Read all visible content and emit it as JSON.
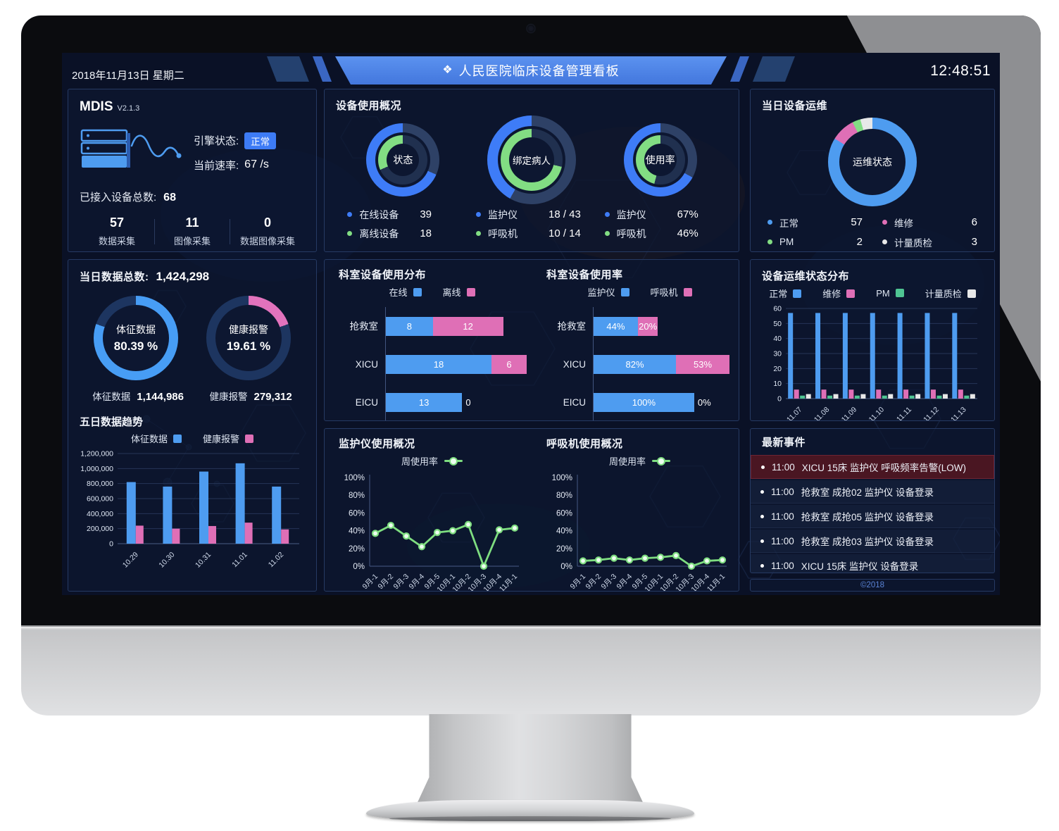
{
  "header": {
    "date": "2018年11月13日 星期二",
    "title": "人民医院临床设备管理看板",
    "title_icon": "❖",
    "time": "12:48:51"
  },
  "mdis": {
    "title": "MDIS",
    "version": "V2.1.3",
    "engine_label": "引擎状态:",
    "engine_status": "正常",
    "rate_label": "当前速率:",
    "rate_value": "67 /s",
    "connected_label": "已接入设备总数:",
    "connected_value": "68",
    "stats": [
      {
        "value": "57",
        "label": "数据采集"
      },
      {
        "value": "11",
        "label": "图像采集"
      },
      {
        "value": "0",
        "label": "数据图像采集"
      }
    ]
  },
  "panels": {
    "device_usage_title": "设备使用概况",
    "today_ops_title": "当日设备运维",
    "today_total_label": "当日数据总数:",
    "today_total_value": "1,424,298",
    "vitals_label": "体征数据",
    "vitals_value": "1,144,986",
    "alarms_label": "健康报警",
    "alarms_value": "279,312",
    "five_day_title": "五日数据趋势",
    "dept_dist_title": "科室设备使用分布",
    "dept_usage_title": "科室设备使用率",
    "ops_dist_title": "设备运维状态分布",
    "monitor_title": "监护仪使用概况",
    "ventilator_title": "呼吸机使用概况",
    "events_title": "最新事件",
    "copyright": "©2018"
  },
  "events": [
    {
      "time": "11:00",
      "text": "XICU 15床 监护仪 呼吸频率告警(LOW)",
      "alert": true
    },
    {
      "time": "11:00",
      "text": "抢救室 成抢02 监护仪 设备登录",
      "alert": false
    },
    {
      "time": "11:00",
      "text": "抢救室 成抢05 监护仪 设备登录",
      "alert": false
    },
    {
      "time": "11:00",
      "text": "抢救室 成抢03 监护仪 设备登录",
      "alert": false
    },
    {
      "time": "11:00",
      "text": "XICU 15床 监护仪 设备登录",
      "alert": false
    }
  ],
  "colors": {
    "donut_blue": "#3e7cf7",
    "bar_blue": "#4e9cf0",
    "green": "#82dd83",
    "teal": "#4fc492",
    "pink": "#df6fb6",
    "white_gray": "#e8e8e8",
    "outer_track": "#2e4166",
    "inner_track": "#20304f",
    "navy_track": "#1d3560",
    "banner_blue": "#4c86e9",
    "badge_blue": "#3d7bf5",
    "alert_bg": "#4a1622"
  },
  "chart_data": [
    {
      "id": "status_donut",
      "type": "pie",
      "variant": "double-ring",
      "direction": "counterclockwise",
      "center_label": "状态",
      "size": 104,
      "rings": [
        {
          "name": "在线设备",
          "value": 39,
          "total": 57,
          "pct": 68.4,
          "color": "#3e7cf7",
          "track": "#2e4166"
        },
        {
          "name": "离线设备",
          "value": 18,
          "total": 57,
          "pct": 31.6,
          "color": "#82dd83",
          "track": "#20304f"
        }
      ],
      "legend": [
        {
          "label": "在线设备",
          "value": "39",
          "color": "#3e7cf7"
        },
        {
          "label": "离线设备",
          "value": "18",
          "color": "#82dd83"
        }
      ]
    },
    {
      "id": "bind_donut",
      "type": "pie",
      "variant": "double-ring",
      "direction": "counterclockwise",
      "center_label": "绑定病人",
      "size": 126,
      "rings": [
        {
          "name": "监护仪",
          "value": 18,
          "total": 43,
          "pct": 41.9,
          "color": "#3e7cf7",
          "track": "#2e4166"
        },
        {
          "name": "呼吸机",
          "value": 10,
          "total": 14,
          "pct": 71.4,
          "color": "#82dd83",
          "track": "#20304f"
        }
      ],
      "legend": [
        {
          "label": "监护仪",
          "value": "18 / 43",
          "color": "#3e7cf7"
        },
        {
          "label": "呼吸机",
          "value": "10 / 14",
          "color": "#82dd83"
        }
      ]
    },
    {
      "id": "usage_donut",
      "type": "pie",
      "variant": "double-ring",
      "direction": "counterclockwise",
      "center_label": "使用率",
      "size": 104,
      "rings": [
        {
          "name": "监护仪",
          "value": 67,
          "total": 100,
          "pct": 67,
          "color": "#3e7cf7",
          "track": "#2e4166"
        },
        {
          "name": "呼吸机",
          "value": 46,
          "total": 100,
          "pct": 46,
          "color": "#82dd83",
          "track": "#20304f"
        }
      ],
      "legend": [
        {
          "label": "监护仪",
          "value": "67%",
          "color": "#3e7cf7"
        },
        {
          "label": "呼吸机",
          "value": "46%",
          "color": "#82dd83"
        }
      ]
    },
    {
      "id": "ops_donut",
      "type": "pie",
      "variant": "slices",
      "center_label": "运维状态",
      "size": 126,
      "slices": [
        {
          "label": "正常",
          "value": 57,
          "color": "#4e9cf0"
        },
        {
          "label": "维修",
          "value": 6,
          "color": "#df6fb6"
        },
        {
          "label": "PM",
          "value": 2,
          "color": "#82dd83"
        },
        {
          "label": "计量质检",
          "value": 3,
          "color": "#e8e8e8"
        }
      ],
      "legend": [
        {
          "label": "正常",
          "value": "57",
          "color": "#4e9cf0"
        },
        {
          "label": "维修",
          "value": "6",
          "color": "#df6fb6"
        },
        {
          "label": "PM",
          "value": "2",
          "color": "#82dd83"
        },
        {
          "label": "计量质检",
          "value": "3",
          "color": "#e8e8e8"
        }
      ]
    },
    {
      "id": "vitals_donut",
      "type": "pie",
      "variant": "single-ring",
      "direction": "clockwise",
      "size": 120,
      "pct": 80.39,
      "color": "#479df5",
      "track": "#1d3560",
      "center_lines": [
        "体征数据",
        "80.39 %"
      ]
    },
    {
      "id": "alarms_donut",
      "type": "pie",
      "variant": "single-ring",
      "direction": "clockwise",
      "size": 120,
      "pct": 19.61,
      "color": "#e273bd",
      "track": "#1d3560",
      "center_lines": [
        "健康报警",
        "19.61 %"
      ]
    },
    {
      "id": "five_day_trend",
      "type": "bar",
      "title": "五日数据趋势",
      "categories": [
        "10.29",
        "10.30",
        "10.31",
        "11.01",
        "11.02"
      ],
      "series": [
        {
          "name": "体征数据",
          "color": "#4e9cf0",
          "values": [
            820000,
            760000,
            960000,
            1070000,
            760000
          ]
        },
        {
          "name": "健康报警",
          "color": "#df6fb6",
          "values": [
            240000,
            200000,
            235000,
            280000,
            190000
          ]
        }
      ],
      "ylim": [
        0,
        1200000
      ],
      "ystep": 200000,
      "grid": true,
      "legend_position": "top"
    },
    {
      "id": "dept_distribution",
      "type": "bar",
      "variant": "horizontal-stacked",
      "title": "科室设备使用分布",
      "categories": [
        "抢救室",
        "XICU",
        "EICU"
      ],
      "series": [
        {
          "name": "在线",
          "color": "#4e9cf0",
          "values": [
            8,
            18,
            13
          ]
        },
        {
          "name": "离线",
          "color": "#df6fb6",
          "values": [
            12,
            6,
            0
          ]
        }
      ],
      "xmax": 24,
      "value_suffix": ""
    },
    {
      "id": "dept_usage",
      "type": "bar",
      "variant": "horizontal-stacked",
      "title": "科室设备使用率",
      "categories": [
        "抢救室",
        "XICU",
        "EICU"
      ],
      "series": [
        {
          "name": "监护仪",
          "color": "#4e9cf0",
          "values": [
            44,
            82,
            100
          ]
        },
        {
          "name": "呼吸机",
          "color": "#df6fb6",
          "values": [
            20,
            53,
            0
          ]
        }
      ],
      "xmax": 140,
      "value_suffix": "%"
    },
    {
      "id": "ops_distribution",
      "type": "bar",
      "title": "设备运维状态分布",
      "categories": [
        "11.07",
        "11.08",
        "11.09",
        "11.10",
        "11.11",
        "11.12",
        "11.13"
      ],
      "series": [
        {
          "name": "正常",
          "color": "#4e9cf0",
          "values": [
            57,
            57,
            57,
            57,
            57,
            57,
            57
          ]
        },
        {
          "name": "维修",
          "color": "#df6fb6",
          "values": [
            6,
            6,
            6,
            6,
            6,
            6,
            6
          ]
        },
        {
          "name": "PM",
          "color": "#4fc492",
          "values": [
            2,
            2,
            2,
            2,
            2,
            2,
            2
          ]
        },
        {
          "name": "计量质检",
          "color": "#e8e8e8",
          "values": [
            3,
            3,
            3,
            3,
            3,
            3,
            3
          ]
        }
      ],
      "ylim": [
        0,
        60
      ],
      "ystep": 10,
      "grid": true,
      "legend_position": "top"
    },
    {
      "id": "monitor_usage",
      "type": "line",
      "title": "监护仪使用概况",
      "legend_label": "周使用率",
      "color": "#7edd80",
      "unit": "%",
      "x": [
        "9月-1",
        "9月-2",
        "9月-3",
        "9月-4",
        "9月-5",
        "10月-1",
        "10月-2",
        "10月-3",
        "10月-4",
        "11月-1"
      ],
      "values": [
        37,
        46,
        34,
        22,
        38,
        40,
        47,
        0,
        41,
        43
      ],
      "ylim": [
        0,
        100
      ],
      "ystep": 20,
      "grid": false
    },
    {
      "id": "ventilator_usage",
      "type": "line",
      "title": "呼吸机使用概况",
      "legend_label": "周使用率",
      "color": "#7edd80",
      "unit": "%",
      "x": [
        "9月-1",
        "9月-2",
        "9月-3",
        "9月-4",
        "9月-5",
        "10月-1",
        "10月-2",
        "10月-3",
        "10月-4",
        "11月-1"
      ],
      "values": [
        6,
        7,
        9,
        7,
        9,
        10,
        12,
        0,
        6,
        7
      ],
      "ylim": [
        0,
        100
      ],
      "ystep": 20,
      "grid": false
    }
  ]
}
